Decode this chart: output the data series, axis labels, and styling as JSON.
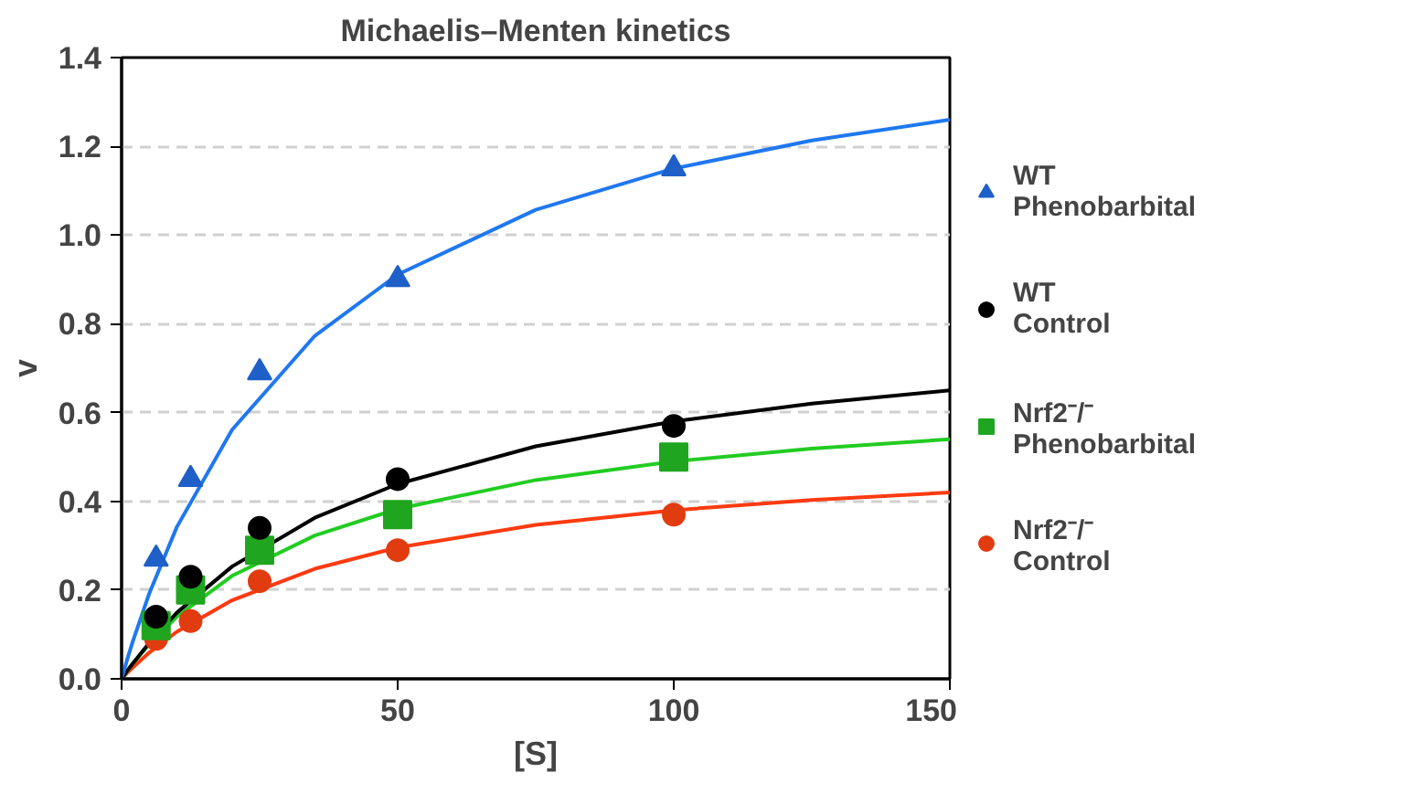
{
  "chart_data": {
    "type": "scatter",
    "title": "Michaelis–Menten kinetics",
    "xlabel": "[S]",
    "ylabel": "v",
    "xlim": [
      0,
      150
    ],
    "ylim": [
      0,
      1.4
    ],
    "xticks": [
      0,
      50,
      100,
      150
    ],
    "yticks": [
      {
        "value": 0,
        "label": "0.0"
      },
      {
        "value": 0.2,
        "label": "0.2"
      },
      {
        "value": 0.4,
        "label": "0.4"
      },
      {
        "value": 0.6,
        "label": "0.6"
      },
      {
        "value": 0.8,
        "label": "0.8"
      },
      {
        "value": 1.0,
        "label": "1.0"
      },
      {
        "value": 1.2,
        "label": "1.2"
      },
      {
        "value": 1.4,
        "label": "1.4"
      }
    ],
    "grid": "y",
    "legend": "right",
    "series": [
      {
        "name": "WT\nPhenobarbital",
        "color": "#1f5fc8",
        "marker": "triangle",
        "x": [
          6.25,
          12.5,
          25,
          50,
          100
        ],
        "values": [
          0.27,
          0.45,
          0.69,
          0.9,
          1.15
        ]
      },
      {
        "name": "WT\nControl",
        "color": "#000000",
        "marker": "circle",
        "x": [
          6.25,
          12.5,
          25,
          50,
          100
        ],
        "values": [
          0.14,
          0.23,
          0.34,
          0.45,
          0.57
        ]
      },
      {
        "name": "Nrf2⁻/⁻\nPhenobarbital",
        "color": "#1fa51f",
        "marker": "square",
        "x": [
          6.25,
          12.5,
          25,
          50,
          100
        ],
        "values": [
          0.12,
          0.2,
          0.29,
          0.37,
          0.5
        ]
      },
      {
        "name": "Nrf2⁻/⁻\nControl",
        "color": "#e03c10",
        "marker": "circle",
        "x": [
          6.25,
          12.5,
          25,
          50,
          100
        ],
        "values": [
          0.09,
          0.13,
          0.22,
          0.29,
          0.37
        ]
      },
      {
        "type": "line",
        "color": "#1f78f0",
        "x": [
          0,
          1,
          2,
          5,
          10,
          20,
          35,
          50,
          75,
          100,
          125,
          150
        ],
        "values": [
          0,
          0.043,
          0.083,
          0.192,
          0.342,
          0.561,
          0.773,
          0.911,
          1.057,
          1.15,
          1.213,
          1.26
        ]
      },
      {
        "type": "line",
        "color": "#000000",
        "x": [
          0,
          1,
          2,
          5,
          10,
          20,
          35,
          50,
          75,
          100,
          125,
          150
        ],
        "values": [
          0,
          0.018,
          0.034,
          0.081,
          0.149,
          0.253,
          0.363,
          0.439,
          0.524,
          0.58,
          0.62,
          0.65
        ]
      },
      {
        "type": "line",
        "color": "#22cc22",
        "x": [
          0,
          1,
          2,
          5,
          10,
          20,
          35,
          50,
          75,
          100,
          125,
          150
        ],
        "values": [
          0,
          0.017,
          0.034,
          0.078,
          0.14,
          0.232,
          0.323,
          0.383,
          0.448,
          0.49,
          0.519,
          0.54
        ]
      },
      {
        "type": "line",
        "color": "#ff3a10",
        "x": [
          0,
          1,
          2,
          5,
          10,
          20,
          35,
          50,
          75,
          100,
          125,
          150
        ],
        "values": [
          0,
          0.013,
          0.025,
          0.059,
          0.106,
          0.177,
          0.248,
          0.296,
          0.347,
          0.38,
          0.403,
          0.42
        ]
      }
    ]
  }
}
